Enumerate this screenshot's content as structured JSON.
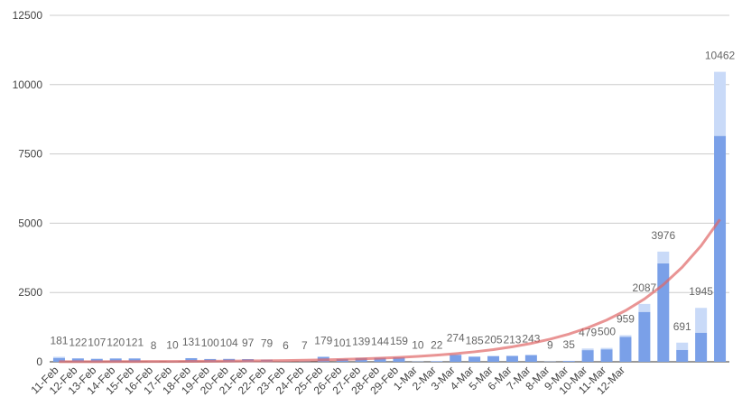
{
  "chart_data": {
    "type": "bar",
    "stacked": true,
    "categories": [
      "11-Feb",
      "12-Feb",
      "13-Feb",
      "14-Feb",
      "15-Feb",
      "16-Feb",
      "17-Feb",
      "18-Feb",
      "19-Feb",
      "20-Feb",
      "21-Feb",
      "22-Feb",
      "23-Feb",
      "24-Feb",
      "25-Feb",
      "26-Feb",
      "27-Feb",
      "28-Feb",
      "29-Feb",
      "1-Mar",
      "2-Mar",
      "3-Mar",
      "4-Mar",
      "5-Mar",
      "6-Mar",
      "7-Mar",
      "8-Mar",
      "9-Mar",
      "10-Mar",
      "11-Mar",
      "12-Mar",
      null,
      null,
      null,
      null,
      null
    ],
    "series": [
      {
        "color": "#7aa0e8",
        "values": [
          140,
          122,
          107,
          120,
          121,
          8,
          10,
          131,
          100,
          104,
          97,
          79,
          6,
          7,
          179,
          101,
          139,
          144,
          159,
          10,
          22,
          250,
          185,
          205,
          213,
          243,
          9,
          30,
          420,
          450,
          900,
          1800,
          3550,
          430,
          1050,
          8150
        ]
      },
      {
        "color": "#c9daf8",
        "values": [
          41,
          0,
          0,
          0,
          0,
          0,
          0,
          0,
          0,
          0,
          0,
          0,
          0,
          0,
          0,
          0,
          0,
          0,
          0,
          0,
          0,
          24,
          0,
          0,
          0,
          0,
          0,
          5,
          59,
          50,
          59,
          287,
          426,
          261,
          895,
          2312
        ]
      }
    ],
    "totals": [
      181,
      122,
      107,
      120,
      121,
      8,
      10,
      131,
      100,
      104,
      97,
      79,
      6,
      7,
      179,
      101,
      139,
      144,
      159,
      10,
      22,
      274,
      185,
      205,
      213,
      243,
      9,
      35,
      479,
      500,
      959,
      2087,
      3976,
      691,
      1945,
      10462
    ],
    "trendline": {
      "color": "#e06666",
      "values": [
        4,
        4.9,
        6,
        7.4,
        9.1,
        11.1,
        13.6,
        16.7,
        20.5,
        25.2,
        30.9,
        37.9,
        46.5,
        57.1,
        70,
        86,
        105,
        129,
        159,
        195,
        239,
        293,
        360,
        441,
        541,
        664,
        815,
        1000,
        1227,
        1505,
        1847,
        2266,
        2780,
        3411,
        4185,
        5135
      ]
    },
    "ylim": [
      0,
      12500
    ],
    "yticks": [
      0,
      2500,
      5000,
      7500,
      10000,
      12500
    ],
    "grid": true
  }
}
